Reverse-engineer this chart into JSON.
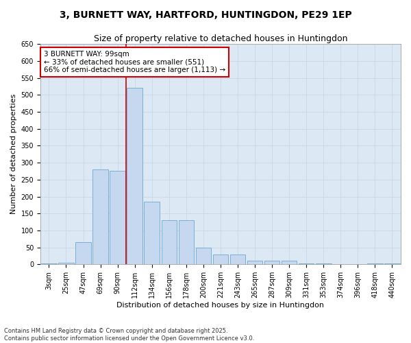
{
  "title1": "3, BURNETT WAY, HARTFORD, HUNTINGDON, PE29 1EP",
  "title2": "Size of property relative to detached houses in Huntingdon",
  "xlabel": "Distribution of detached houses by size in Huntingdon",
  "ylabel": "Number of detached properties",
  "categories": [
    "3sqm",
    "25sqm",
    "47sqm",
    "69sqm",
    "90sqm",
    "112sqm",
    "134sqm",
    "156sqm",
    "178sqm",
    "200sqm",
    "221sqm",
    "243sqm",
    "265sqm",
    "287sqm",
    "309sqm",
    "331sqm",
    "353sqm",
    "374sqm",
    "396sqm",
    "418sqm",
    "440sqm"
  ],
  "bar_values": [
    3,
    5,
    65,
    280,
    275,
    520,
    185,
    130,
    130,
    50,
    30,
    30,
    10,
    10,
    10,
    3,
    3,
    0,
    0,
    3,
    3
  ],
  "bar_color": "#c5d8ef",
  "bar_edge_color": "#7aafd4",
  "vline_x": 4.5,
  "vline_color": "#cc0000",
  "annotation_box_text": "3 BURNETT WAY: 99sqm\n← 33% of detached houses are smaller (551)\n66% of semi-detached houses are larger (1,113) →",
  "annotation_box_color": "#cc0000",
  "grid_color": "#c8d8e8",
  "bg_color": "#dce8f4",
  "fig_color": "#ffffff",
  "ylim": [
    0,
    650
  ],
  "yticks": [
    0,
    50,
    100,
    150,
    200,
    250,
    300,
    350,
    400,
    450,
    500,
    550,
    600,
    650
  ],
  "footer": "Contains HM Land Registry data © Crown copyright and database right 2025.\nContains public sector information licensed under the Open Government Licence v3.0.",
  "title1_fontsize": 10,
  "title2_fontsize": 9,
  "axis_label_fontsize": 8,
  "tick_fontsize": 7,
  "footer_fontsize": 6
}
